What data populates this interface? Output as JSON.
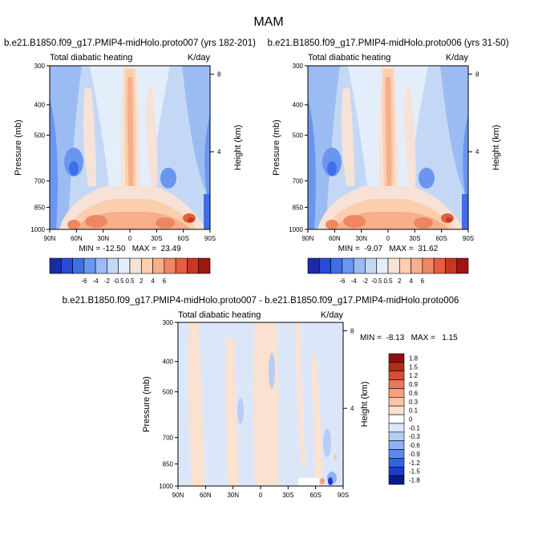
{
  "figure": {
    "title": "MAM"
  },
  "colors": {
    "main": [
      "#1b2aa6",
      "#2a49d6",
      "#3f6ee6",
      "#6a96ef",
      "#9bbcf3",
      "#c4d8f6",
      "#e4eefb",
      "#f6e2d6",
      "#fbcfae",
      "#f7ae8a",
      "#ef8662",
      "#e2603f",
      "#c93521",
      "#9e1512"
    ],
    "diff": [
      "#0a1a8c",
      "#1e3bd0",
      "#3262e4",
      "#5d8ae9",
      "#8fb1f0",
      "#b7cdf4",
      "#dbe7f9",
      "#ffffff",
      "#fbe1cf",
      "#f8c6a6",
      "#f2a07e",
      "#e7785b",
      "#d84f35",
      "#b62a1c",
      "#8e0f0c"
    ]
  },
  "chart_data": [
    {
      "type": "heatmap",
      "title": "b.e21.B1850.f09_g17.PMIP4-midHolo.proto007 (yrs 182-201)",
      "left_label": "Total diabatic heating",
      "right_label": "K/day",
      "xlabel": "",
      "ylabel": "Pressure (mb)",
      "y2label": "Height (km)",
      "x_ticks": [
        "90N",
        "60N",
        "30N",
        "0",
        "30S",
        "60S",
        "90S"
      ],
      "y_ticks": [
        "300",
        "400",
        "500",
        "700",
        "850",
        "1000"
      ],
      "y2_ticks": [
        "8",
        "4"
      ],
      "stats": "MIN = -12.50   MAX =  23.49",
      "colorbar": {
        "orientation": "horizontal",
        "labels": [
          "-6",
          "-4",
          "-2",
          "-0.5",
          "0.5",
          "2",
          "4",
          "6"
        ]
      }
    },
    {
      "type": "heatmap",
      "title": "b.e21.B1850.f09_g17.PMIP4-midHolo.proto006 (yrs 31-50)",
      "left_label": "Total diabatic heating",
      "right_label": "K/day",
      "xlabel": "",
      "ylabel": "Pressure (mb)",
      "y2label": "Height (km)",
      "x_ticks": [
        "90N",
        "60N",
        "30N",
        "0",
        "30S",
        "60S",
        "90S"
      ],
      "y_ticks": [
        "300",
        "400",
        "500",
        "700",
        "850",
        "1000"
      ],
      "y2_ticks": [
        "8",
        "4"
      ],
      "stats": "MIN =  -9.07   MAX =  31.62",
      "colorbar": {
        "orientation": "horizontal",
        "labels": [
          "-6",
          "-4",
          "-2",
          "-0.5",
          "0.5",
          "2",
          "4",
          "6"
        ]
      }
    },
    {
      "type": "heatmap",
      "title": "b.e21.B1850.f09_g17.PMIP4-midHolo.proto007 - b.e21.B1850.f09_g17.PMIP4-midHolo.proto006",
      "left_label": "Total diabatic heating",
      "right_label": "K/day",
      "xlabel": "",
      "ylabel": "Pressure (mb)",
      "y2label": "Height (km)",
      "x_ticks": [
        "90N",
        "60N",
        "30N",
        "0",
        "30S",
        "60S",
        "90S"
      ],
      "y_ticks": [
        "300",
        "400",
        "500",
        "700",
        "850",
        "1000"
      ],
      "y2_ticks": [
        "8",
        "4"
      ],
      "stats": "MIN =  -8.13   MAX =   1.15",
      "colorbar": {
        "orientation": "vertical",
        "labels": [
          "1.8",
          "1.5",
          "1.2",
          "0.9",
          "0.6",
          "0.3",
          "0.1",
          "0",
          "-0.1",
          "-0.3",
          "-0.6",
          "-0.9",
          "-1.2",
          "-1.5",
          "-1.8"
        ]
      }
    }
  ]
}
